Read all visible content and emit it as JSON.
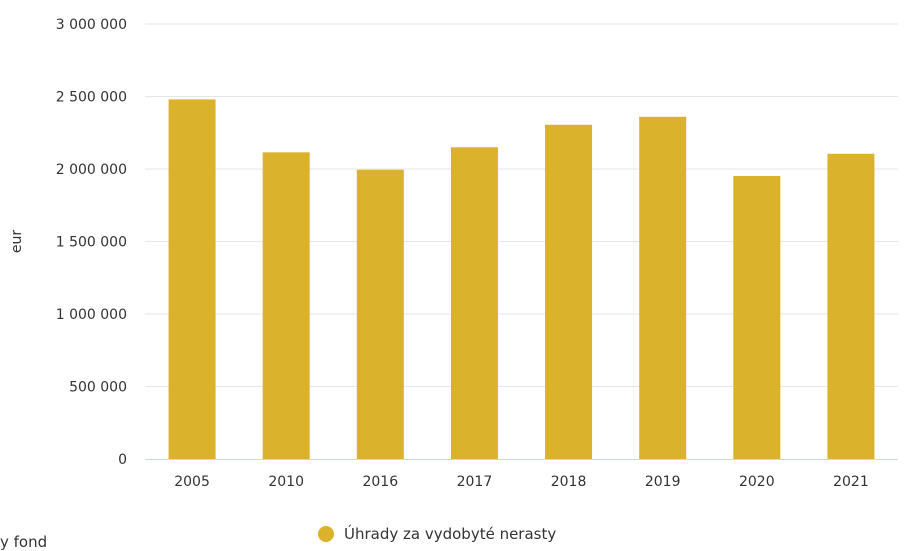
{
  "chart_data": {
    "type": "bar",
    "title": "",
    "xlabel": "",
    "ylabel": "eur",
    "categories": [
      "2005",
      "2010",
      "2016",
      "2017",
      "2018",
      "2019",
      "2020",
      "2021"
    ],
    "series": [
      {
        "name": "Úhrady za vydobyté nerasty",
        "values": [
          2480000,
          2115000,
          1995000,
          2150000,
          2305000,
          2360000,
          1952000,
          2105000
        ]
      }
    ],
    "ylim": [
      0,
      3000000
    ],
    "yticks": [
      "0",
      "500 000",
      "1 000 000",
      "1 500 000",
      "2 000 000",
      "2 500 000",
      "3 000 000"
    ],
    "ytick_values": [
      0,
      500000,
      1000000,
      1500000,
      2000000,
      2500000,
      3000000
    ],
    "grid": true,
    "legend_placement": "bottom-center",
    "colors": {
      "bar": "#DBB22C",
      "grid": "#E6E6E6",
      "axis": "#CCD6EB"
    }
  },
  "footer": {
    "cut_text": "y fond"
  }
}
